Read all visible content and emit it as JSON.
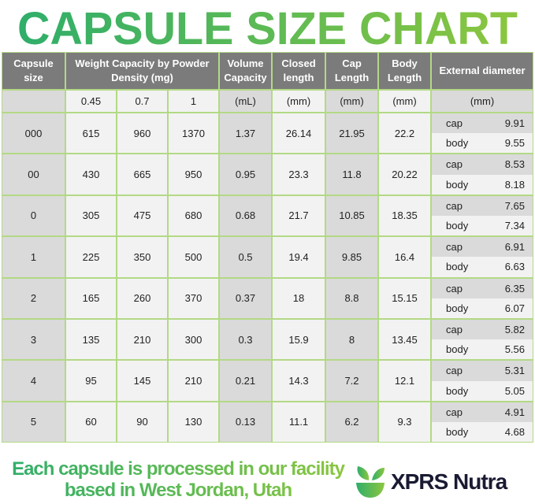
{
  "title": "CAPSULE SIZE CHART",
  "chart_data": {
    "type": "table",
    "headers": [
      "Capsule size",
      "Weight Capacity by Powder Density (mg)",
      "Volume Capacity",
      "Closed length",
      "Cap Length",
      "Body Length",
      "External diameter"
    ],
    "units": [
      "",
      "0.45",
      "0.7",
      "1",
      "(mL)",
      "(mm)",
      "(mm)",
      "(mm)",
      "(mm)"
    ],
    "rows": [
      {
        "size": "000",
        "w045": "615",
        "w07": "960",
        "w1": "1370",
        "volume": "1.37",
        "closed": "26.14",
        "cap_len": "21.95",
        "body_len": "22.2",
        "cap_label": "cap",
        "cap_d": "9.91",
        "body_label": "body",
        "body_d": "9.55"
      },
      {
        "size": "00",
        "w045": "430",
        "w07": "665",
        "w1": "950",
        "volume": "0.95",
        "closed": "23.3",
        "cap_len": "11.8",
        "body_len": "20.22",
        "cap_label": "cap",
        "cap_d": "8.53",
        "body_label": "body",
        "body_d": "8.18"
      },
      {
        "size": "0",
        "w045": "305",
        "w07": "475",
        "w1": "680",
        "volume": "0.68",
        "closed": "21.7",
        "cap_len": "10.85",
        "body_len": "18.35",
        "cap_label": "cap",
        "cap_d": "7.65",
        "body_label": "body",
        "body_d": "7.34"
      },
      {
        "size": "1",
        "w045": "225",
        "w07": "350",
        "w1": "500",
        "volume": "0.5",
        "closed": "19.4",
        "cap_len": "9.85",
        "body_len": "16.4",
        "cap_label": "cap",
        "cap_d": "6.91",
        "body_label": "body",
        "body_d": "6.63"
      },
      {
        "size": "2",
        "w045": "165",
        "w07": "260",
        "w1": "370",
        "volume": "0.37",
        "closed": "18",
        "cap_len": "8.8",
        "body_len": "15.15",
        "cap_label": "cap",
        "cap_d": "6.35",
        "body_label": "body",
        "body_d": "6.07"
      },
      {
        "size": "3",
        "w045": "135",
        "w07": "210",
        "w1": "300",
        "volume": "0.3",
        "closed": "15.9",
        "cap_len": "8",
        "body_len": "13.45",
        "cap_label": "cap",
        "cap_d": "5.82",
        "body_label": "body",
        "body_d": "5.56"
      },
      {
        "size": "4",
        "w045": "95",
        "w07": "145",
        "w1": "210",
        "volume": "0.21",
        "closed": "14.3",
        "cap_len": "7.2",
        "body_len": "12.1",
        "cap_label": "cap",
        "cap_d": "5.31",
        "body_label": "body",
        "body_d": "5.05"
      },
      {
        "size": "5",
        "w045": "60",
        "w07": "90",
        "w1": "130",
        "volume": "0.13",
        "closed": "11.1",
        "cap_len": "6.2",
        "body_len": "9.3",
        "cap_label": "cap",
        "cap_d": "4.91",
        "body_label": "body",
        "body_d": "4.68"
      }
    ]
  },
  "footer": {
    "text": "Each capsule is processed in our facility based in West Jordan, Utah",
    "brand": "XPRS Nutra"
  },
  "colors": {
    "header": "#7b7b7b",
    "border": "#b3d985",
    "accent": "#2fae6a"
  }
}
